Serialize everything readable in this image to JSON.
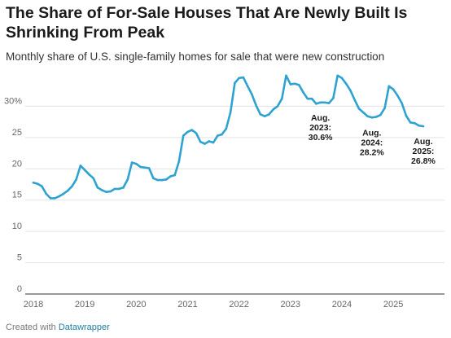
{
  "header": {
    "title": "The Share of For-Sale Houses That Are Newly Built Is Shrinking From Peak",
    "subtitle": "Monthly share of U.S. single-family homes for sale that were new construction"
  },
  "footer": {
    "prefix": "Created with",
    "brand": "Datawrapper"
  },
  "colors": {
    "line": "#2ea3d1",
    "grid": "#e3e3e3",
    "baseline": "#333333",
    "brand": "#1d81a2"
  },
  "chart_data": {
    "type": "line",
    "title": "The Share of For-Sale Houses That Are Newly Built Is Shrinking From Peak",
    "subtitle": "Monthly share of U.S. single-family homes for sale that were new construction",
    "xlabel": "",
    "ylabel": "",
    "ylim": [
      0,
      35
    ],
    "y_ticks": [
      0,
      5,
      10,
      15,
      20,
      25,
      30
    ],
    "y_tick_labels": [
      "0",
      "5",
      "10",
      "15",
      "20",
      "25",
      "30%"
    ],
    "x_ticks": [
      {
        "x": "2018-01",
        "label": "2018"
      },
      {
        "x": "2019-01",
        "label": "2019"
      },
      {
        "x": "2020-01",
        "label": "2020"
      },
      {
        "x": "2021-01",
        "label": "2021"
      },
      {
        "x": "2022-01",
        "label": "2022"
      },
      {
        "x": "2023-01",
        "label": "2023"
      },
      {
        "x": "2024-01",
        "label": "2024"
      },
      {
        "x": "2025-01",
        "label": "2025"
      }
    ],
    "grid": true,
    "x": [
      "2018-01",
      "2018-02",
      "2018-03",
      "2018-04",
      "2018-05",
      "2018-06",
      "2018-07",
      "2018-08",
      "2018-09",
      "2018-10",
      "2018-11",
      "2018-12",
      "2019-01",
      "2019-02",
      "2019-03",
      "2019-04",
      "2019-05",
      "2019-06",
      "2019-07",
      "2019-08",
      "2019-09",
      "2019-10",
      "2019-11",
      "2019-12",
      "2020-01",
      "2020-02",
      "2020-03",
      "2020-04",
      "2020-05",
      "2020-06",
      "2020-07",
      "2020-08",
      "2020-09",
      "2020-10",
      "2020-11",
      "2020-12",
      "2021-01",
      "2021-02",
      "2021-03",
      "2021-04",
      "2021-05",
      "2021-06",
      "2021-07",
      "2021-08",
      "2021-09",
      "2021-10",
      "2021-11",
      "2021-12",
      "2022-01",
      "2022-02",
      "2022-03",
      "2022-04",
      "2022-05",
      "2022-06",
      "2022-07",
      "2022-08",
      "2022-09",
      "2022-10",
      "2022-11",
      "2022-12",
      "2023-01",
      "2023-02",
      "2023-03",
      "2023-04",
      "2023-05",
      "2023-06",
      "2023-07",
      "2023-08",
      "2023-09",
      "2023-10",
      "2023-11",
      "2023-12",
      "2024-01",
      "2024-02",
      "2024-03",
      "2024-04",
      "2024-05",
      "2024-06",
      "2024-07",
      "2024-08",
      "2024-09",
      "2024-10",
      "2024-11",
      "2024-12",
      "2025-01",
      "2025-02",
      "2025-03",
      "2025-04",
      "2025-05",
      "2025-06",
      "2025-07",
      "2025-08"
    ],
    "series": [
      {
        "values": [
          17.8,
          17.6,
          17.2,
          16.0,
          15.3,
          15.3,
          15.6,
          16.0,
          16.5,
          17.2,
          18.3,
          20.5,
          19.8,
          19.1,
          18.5,
          17.0,
          16.6,
          16.3,
          16.4,
          16.8,
          16.8,
          17.0,
          18.3,
          21.0,
          20.8,
          20.3,
          20.2,
          20.1,
          18.5,
          18.2,
          18.2,
          18.3,
          18.8,
          19.0,
          21.2,
          25.3,
          25.9,
          26.2,
          25.7,
          24.3,
          24.0,
          24.4,
          24.2,
          25.3,
          25.5,
          26.4,
          29.0,
          33.7,
          34.5,
          34.6,
          33.2,
          31.9,
          30.1,
          28.7,
          28.4,
          28.7,
          29.5,
          30.0,
          31.2,
          34.9,
          33.5,
          33.6,
          33.4,
          32.2,
          31.2,
          31.2,
          30.4,
          30.6,
          30.6,
          30.5,
          31.3,
          34.9,
          34.5,
          33.6,
          32.5,
          31.0,
          29.6,
          29.0,
          28.4,
          28.2,
          28.3,
          28.6,
          29.7,
          33.2,
          32.7,
          31.7,
          30.5,
          28.5,
          27.4,
          27.3,
          26.9,
          26.8
        ]
      }
    ],
    "annotations": [
      {
        "lines": [
          "Aug.",
          "2023:",
          "30.6%"
        ],
        "x": "2023-08",
        "value": 30.6
      },
      {
        "lines": [
          "Aug.",
          "2024:",
          "28.2%"
        ],
        "x": "2024-08",
        "value": 28.2
      },
      {
        "lines": [
          "Aug.",
          "2025:",
          "26.8%"
        ],
        "x": "2025-08",
        "value": 26.8
      }
    ]
  }
}
